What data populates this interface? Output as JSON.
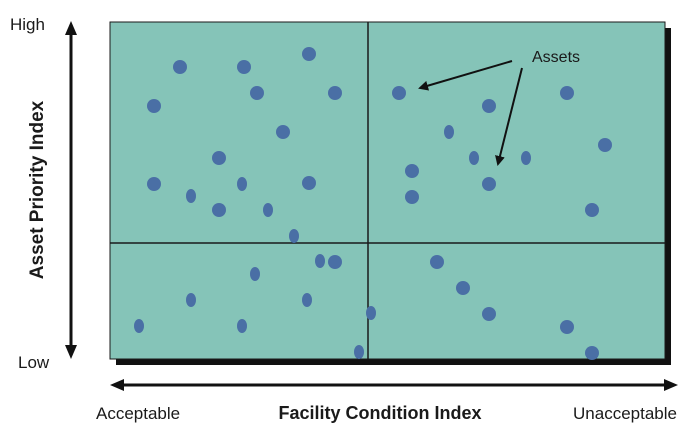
{
  "y_axis": {
    "title": "Asset Priority Index",
    "top_label": "High",
    "bottom_label": "Low"
  },
  "x_axis": {
    "title": "Facility Condition Index",
    "left_label": "Acceptable",
    "right_label": "Unacceptable"
  },
  "annotation": {
    "label": "Assets"
  },
  "colors": {
    "panel": "#85c4b8",
    "shadow": "#111111",
    "gridline": "#1a1a1a",
    "dot": "#4a6fa5",
    "arrow": "#111111"
  },
  "asset_count": 40
}
